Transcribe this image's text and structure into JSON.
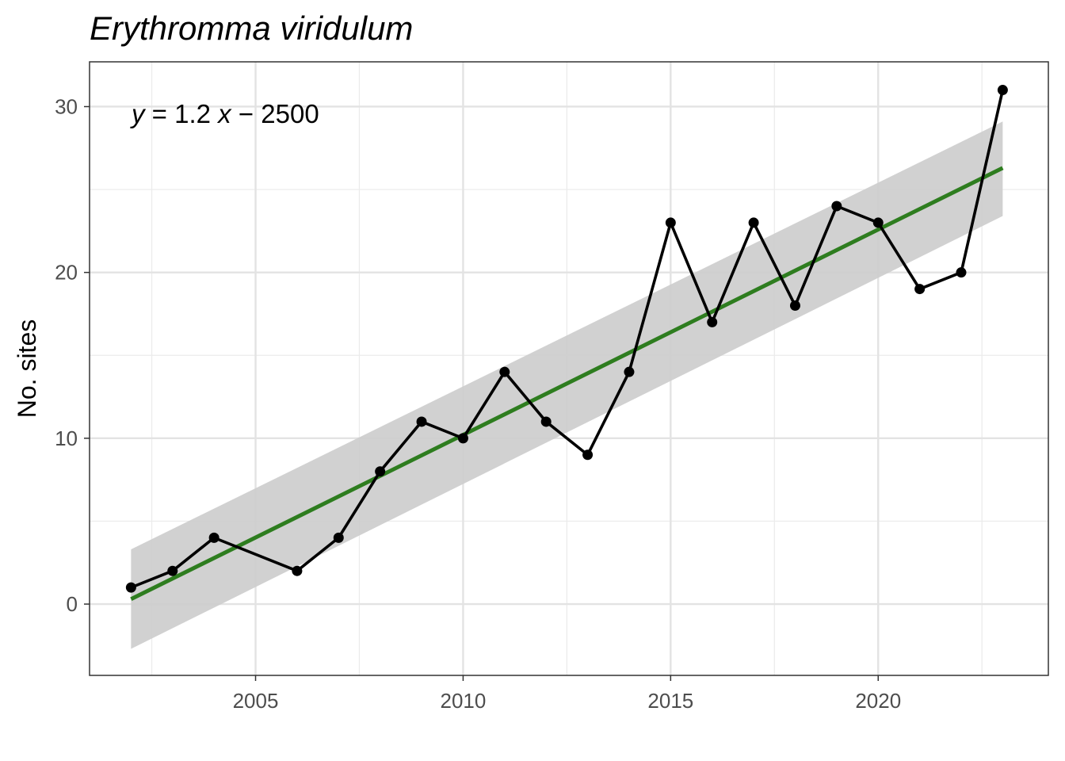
{
  "chart_data": {
    "type": "line",
    "title": "Erythromma viridulum",
    "xlabel": "",
    "ylabel": "No. sites",
    "xlim": [
      2001.0,
      2024.1
    ],
    "ylim": [
      -4.3,
      32.7
    ],
    "x_ticks": [
      2005,
      2010,
      2015,
      2020
    ],
    "x_minor_ticks": [
      2002.5,
      2007.5,
      2012.5,
      2017.5,
      2022.5
    ],
    "y_ticks": [
      0,
      10,
      20,
      30
    ],
    "y_minor_ticks": [
      5,
      15,
      25
    ],
    "grid": true,
    "series": [
      {
        "type": "line+points",
        "color": "#000000",
        "points": [
          {
            "x": 2002,
            "y": 1
          },
          {
            "x": 2003,
            "y": 2
          },
          {
            "x": 2004,
            "y": 4
          },
          {
            "x": 2006,
            "y": 2
          },
          {
            "x": 2007,
            "y": 4
          },
          {
            "x": 2008,
            "y": 8
          },
          {
            "x": 2009,
            "y": 11
          },
          {
            "x": 2010,
            "y": 10
          },
          {
            "x": 2011,
            "y": 14
          },
          {
            "x": 2012,
            "y": 11
          },
          {
            "x": 2013,
            "y": 9
          },
          {
            "x": 2014,
            "y": 14
          },
          {
            "x": 2015,
            "y": 23
          },
          {
            "x": 2016,
            "y": 17
          },
          {
            "x": 2017,
            "y": 23
          },
          {
            "x": 2018,
            "y": 18
          },
          {
            "x": 2019,
            "y": 24
          },
          {
            "x": 2020,
            "y": 23
          },
          {
            "x": 2021,
            "y": 19
          },
          {
            "x": 2022,
            "y": 20
          },
          {
            "x": 2023,
            "y": 31
          }
        ]
      }
    ],
    "trend": {
      "type": "linear-fit",
      "color": "#2e7d1f",
      "ribbon_color": "#cccccc",
      "x": [
        2002,
        2023
      ],
      "y": [
        0.3,
        26.3
      ],
      "ci_lower": [
        -2.7,
        23.4
      ],
      "ci_upper": [
        3.3,
        29.1
      ]
    },
    "annotation": {
      "y_var": "y",
      "eq_middle": " = 1.2 ",
      "x_var": "x",
      "eq_rest": " − 2500"
    }
  }
}
